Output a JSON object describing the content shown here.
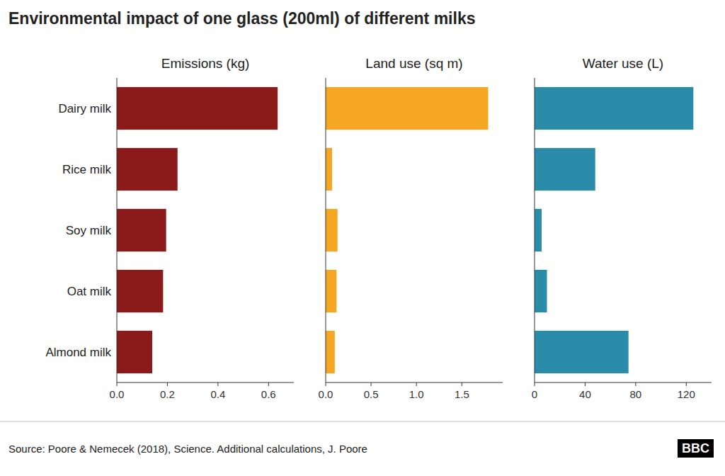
{
  "title": "Environmental impact of one glass (200ml) of different milks",
  "annotations": [
    "Source: Poore & Nemecek (2018), Science. Additional calculations, J. Poore",
    "BBC"
  ],
  "chart_data": [
    {
      "type": "bar",
      "orientation": "horizontal",
      "title": "Emissions (kg)",
      "categories": [
        "Dairy milk",
        "Rice milk",
        "Soy milk",
        "Oat milk",
        "Almond milk"
      ],
      "values": [
        0.636,
        0.24,
        0.195,
        0.183,
        0.14
      ],
      "color": "#8B1A1A",
      "xlim": [
        0,
        0.7
      ],
      "xticks": [
        {
          "value": 0,
          "label": "0.0"
        },
        0.2,
        0.4,
        0.6
      ],
      "grid": false
    },
    {
      "type": "bar",
      "orientation": "horizontal",
      "title": "Land use (sq m)",
      "categories": [
        "Dairy milk",
        "Rice milk",
        "Soy milk",
        "Oat milk",
        "Almond milk"
      ],
      "values": [
        1.79,
        0.07,
        0.13,
        0.12,
        0.1
      ],
      "color": "#F5A623",
      "xlim": [
        0,
        1.95
      ],
      "xticks": [
        {
          "value": 0,
          "label": "0.0"
        },
        0.5,
        {
          "value": 1,
          "label": "1.0"
        },
        1.5
      ],
      "grid": false,
      "tick_labels": "x"
    },
    {
      "type": "bar",
      "orientation": "horizontal",
      "title": "Water use (L)",
      "categories": [
        "Dairy milk",
        "Rice milk",
        "Soy milk",
        "Oat milk",
        "Almond milk"
      ],
      "values": [
        125.6,
        48.0,
        5.6,
        9.8,
        74.3
      ],
      "color": "#2A8CA8",
      "xlim": [
        0,
        140
      ],
      "xticks": [
        0,
        40,
        80,
        120
      ],
      "grid": false,
      "tick_labels": "x"
    }
  ]
}
